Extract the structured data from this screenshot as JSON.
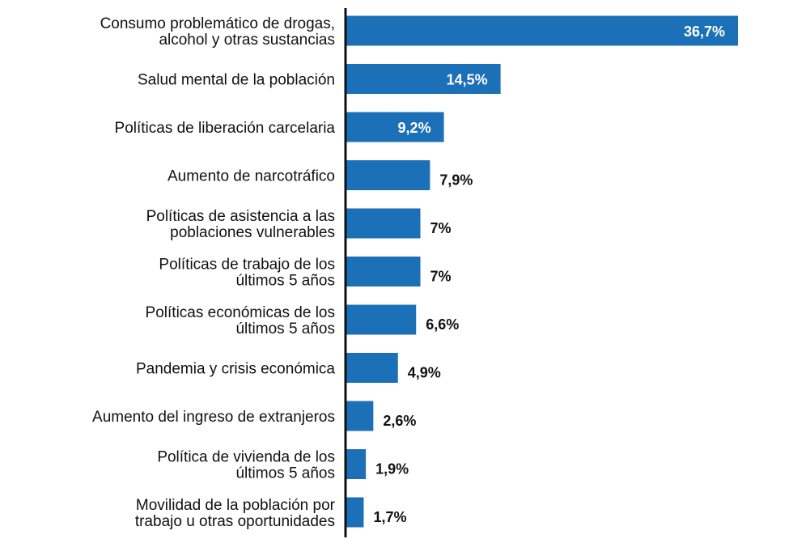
{
  "chart_data": {
    "type": "bar",
    "orientation": "horizontal",
    "title": "",
    "xlabel": "",
    "ylabel": "",
    "unit": "%",
    "bar_color": "#1b70b8",
    "categories": [
      "Consumo problemático de drogas,\nalcohol y otras sustancias",
      "Salud mental de la población",
      "Políticas de liberación carcelaria",
      "Aumento de narcotráfico",
      "Políticas de asistencia a las\npoblaciones vulnerables",
      "Políticas de trabajo de los\núltimos 5 años",
      "Políticas económicas de los\núltimos 5 años",
      "Pandemia y crisis económica",
      "Aumento del ingreso de extranjeros",
      "Política de vivienda de los\núltimos 5 años",
      "Movilidad de la población por\ntrabajo u otras oportunidades"
    ],
    "values": [
      36.7,
      14.5,
      9.2,
      7.9,
      7,
      7,
      6.6,
      4.9,
      2.6,
      1.9,
      1.7
    ],
    "value_labels": [
      "36,7%",
      "14,5%",
      "9,2%",
      "7,9%",
      "7%",
      "7%",
      "6,6%",
      "4,9%",
      "2,6%",
      "1,9%",
      "1,7%"
    ],
    "xlim": [
      0,
      36.7
    ],
    "grid": false,
    "legend": "none"
  }
}
